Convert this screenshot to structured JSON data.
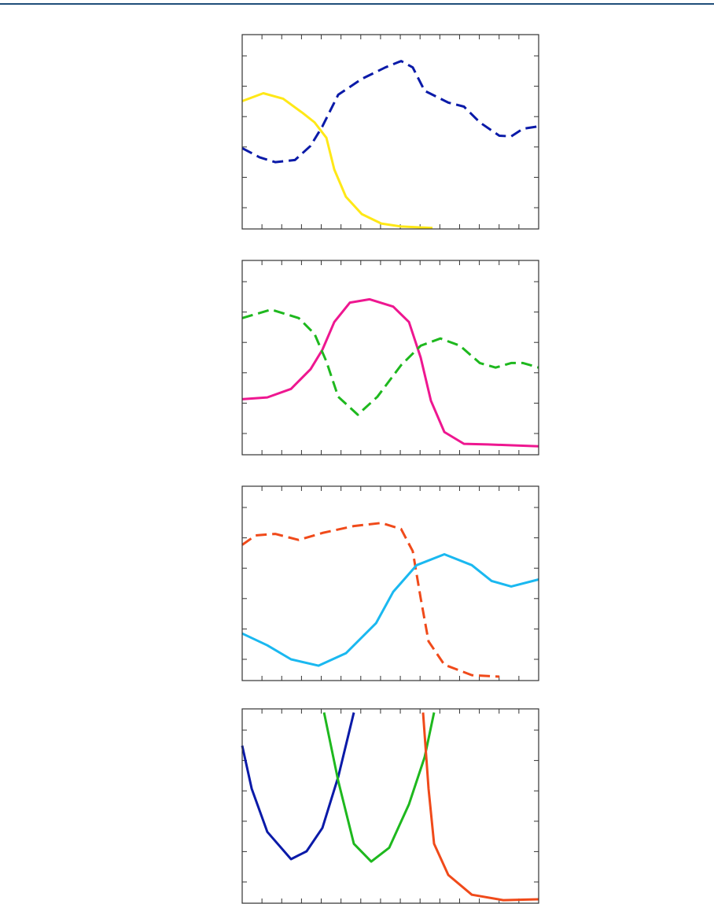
{
  "chart_data": [
    {
      "type": "line",
      "xlim": [
        0,
        15
      ],
      "ylim": [
        0,
        6.4
      ],
      "xticks": [
        0,
        1,
        2,
        3,
        4,
        5,
        6,
        7,
        8,
        9,
        10,
        11,
        12,
        13,
        14,
        15
      ],
      "yticks": [
        0.7,
        1.7,
        2.7,
        3.7,
        4.7,
        5.7
      ],
      "series": [
        {
          "color": "#ffe817",
          "dashed": false,
          "x": [
            0,
            1.07,
            2.07,
            3.06,
            3.66,
            4.26,
            4.66,
            5.25,
            6.05,
            7.04,
            8.04,
            9.63
          ],
          "values": [
            4.21,
            4.47,
            4.29,
            3.82,
            3.51,
            3.0,
            1.96,
            1.06,
            0.49,
            0.18,
            0.08,
            0.03
          ]
        },
        {
          "color": "#0a1aa8",
          "dashed": true,
          "x": [
            0,
            0.88,
            1.67,
            2.67,
            3.46,
            4.06,
            4.86,
            6.05,
            7.24,
            8.04,
            8.63,
            9.23,
            10.43,
            11.22,
            12.02,
            13.01,
            13.61,
            14.21,
            15
          ],
          "values": [
            2.66,
            2.36,
            2.2,
            2.27,
            2.74,
            3.38,
            4.42,
            4.94,
            5.32,
            5.53,
            5.32,
            4.55,
            4.16,
            4.03,
            3.51,
            3.07,
            3.05,
            3.3,
            3.38
          ]
        }
      ]
    },
    {
      "type": "line",
      "xlim": [
        0,
        15
      ],
      "ylim": [
        0,
        6.4
      ],
      "xticks": [
        0,
        1,
        2,
        3,
        4,
        5,
        6,
        7,
        8,
        9,
        10,
        11,
        12,
        13,
        14,
        15
      ],
      "yticks": [
        0.7,
        1.7,
        2.7,
        3.7,
        4.7,
        5.7
      ],
      "series": [
        {
          "color": "#ee1790",
          "dashed": false,
          "x": [
            0,
            1.27,
            2.47,
            3.46,
            4.06,
            4.66,
            5.45,
            6.45,
            7.64,
            8.44,
            9.03,
            9.55,
            10.23,
            11.22,
            12.42,
            15
          ],
          "values": [
            1.83,
            1.89,
            2.17,
            2.82,
            3.46,
            4.37,
            5.01,
            5.12,
            4.88,
            4.37,
            3.2,
            1.78,
            0.75,
            0.36,
            0.34,
            0.28
          ]
        },
        {
          "color": "#1eb81e",
          "dashed": true,
          "x": [
            0,
            1.47,
            2.86,
            3.66,
            4.26,
            4.86,
            5.85,
            6.84,
            8.04,
            9.03,
            10.03,
            11.02,
            12.02,
            12.82,
            13.61,
            14.21,
            15
          ],
          "values": [
            4.5,
            4.78,
            4.5,
            3.98,
            3.07,
            1.91,
            1.32,
            1.91,
            2.95,
            3.59,
            3.83,
            3.59,
            3.02,
            2.87,
            3.02,
            3.02,
            2.87
          ]
        }
      ]
    },
    {
      "type": "line",
      "xlim": [
        0,
        15
      ],
      "ylim": [
        0,
        6.4
      ],
      "xticks": [
        0,
        1,
        2,
        3,
        4,
        5,
        6,
        7,
        8,
        9,
        10,
        11,
        12,
        13,
        14,
        15
      ],
      "yticks": [
        0.7,
        1.7,
        2.7,
        3.7,
        4.7,
        5.7
      ],
      "series": [
        {
          "color": "#f04a1a",
          "dashed": true,
          "x": [
            0,
            0.68,
            1.67,
            2.86,
            4.06,
            5.65,
            7.04,
            8.04,
            8.63,
            9.03,
            9.43,
            10.23,
            11.62,
            13.01
          ],
          "values": [
            4.47,
            4.78,
            4.83,
            4.63,
            4.86,
            5.09,
            5.19,
            4.99,
            4.26,
            2.71,
            1.29,
            0.52,
            0.18,
            0.13
          ]
        },
        {
          "color": "#1ab8f0",
          "dashed": false,
          "x": [
            0,
            1.27,
            2.47,
            3.86,
            5.25,
            6.77,
            7.64,
            8.83,
            10.23,
            11.62,
            12.62,
            13.61,
            15
          ],
          "values": [
            1.55,
            1.16,
            0.7,
            0.49,
            0.9,
            1.89,
            2.92,
            3.8,
            4.16,
            3.8,
            3.28,
            3.1,
            3.33
          ]
        }
      ]
    },
    {
      "type": "line",
      "xlim": [
        0,
        15
      ],
      "ylim": [
        0,
        6.4
      ],
      "xticks": [
        0,
        1,
        2,
        3,
        4,
        5,
        6,
        7,
        8,
        9,
        10,
        11,
        12,
        13,
        14,
        15
      ],
      "yticks": [
        0.7,
        1.7,
        2.7,
        3.7,
        4.7,
        5.7
      ],
      "series": [
        {
          "color": "#0a1aa8",
          "dashed": false,
          "x": [
            0,
            0.48,
            1.27,
            2.47,
            3.26,
            4.06,
            4.86,
            5.65
          ],
          "values": [
            5.19,
            3.77,
            2.35,
            1.45,
            1.71,
            2.48,
            4.16,
            6.28
          ]
        },
        {
          "color": "#1eb81e",
          "dashed": false,
          "x": [
            4.14,
            4.86,
            5.65,
            6.53,
            7.44,
            8.44,
            9.23,
            9.71
          ],
          "values": [
            6.28,
            4.03,
            1.96,
            1.37,
            1.83,
            3.26,
            4.81,
            6.28
          ]
        },
        {
          "color": "#f04a1a",
          "dashed": false,
          "x": [
            9.15,
            9.43,
            9.71,
            10.43,
            11.62,
            13.21,
            15
          ],
          "values": [
            6.28,
            3.77,
            1.96,
            0.93,
            0.28,
            0.1,
            0.13
          ]
        }
      ]
    }
  ]
}
